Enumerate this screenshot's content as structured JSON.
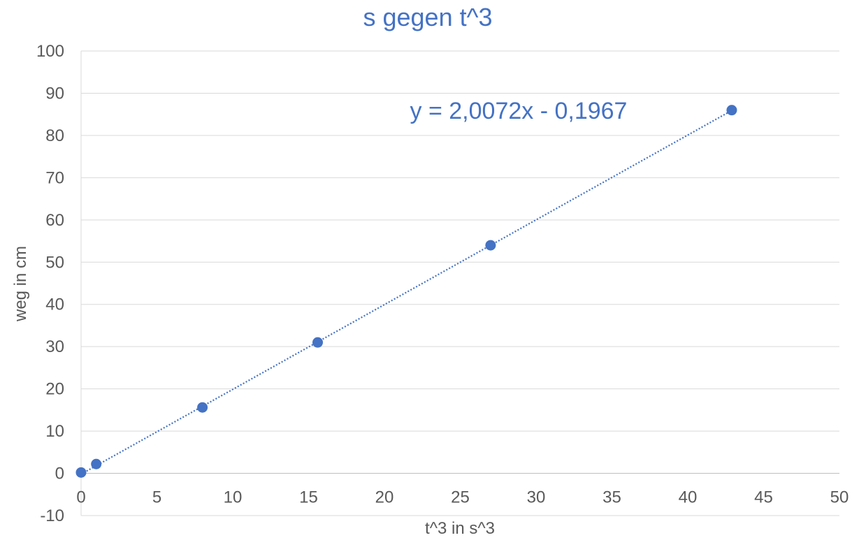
{
  "chart_data": {
    "type": "scatter",
    "title": "s gegen t^3",
    "xlabel": "t^3 in s^3",
    "ylabel": "weg in cm",
    "xlim": [
      0,
      50
    ],
    "ylim": [
      -10,
      100
    ],
    "xticks": [
      0,
      5,
      10,
      15,
      20,
      25,
      30,
      35,
      40,
      45,
      50
    ],
    "yticks": [
      -10,
      0,
      10,
      20,
      30,
      40,
      50,
      60,
      70,
      80,
      90,
      100
    ],
    "grid": "horizontal",
    "series": [
      {
        "x": [
          0,
          1,
          8,
          15.6,
          27,
          42.9
        ],
        "y": [
          0.2,
          2.2,
          15.6,
          31,
          54,
          86
        ],
        "color": "#4472C4"
      }
    ],
    "trendline": {
      "type": "linear",
      "slope": 2.0072,
      "intercept": -0.1967,
      "x_range": [
        0,
        42.9
      ],
      "style": "dotted",
      "color": "#4472C4",
      "equation_label": "y = 2,0072x - 0,1967"
    }
  }
}
